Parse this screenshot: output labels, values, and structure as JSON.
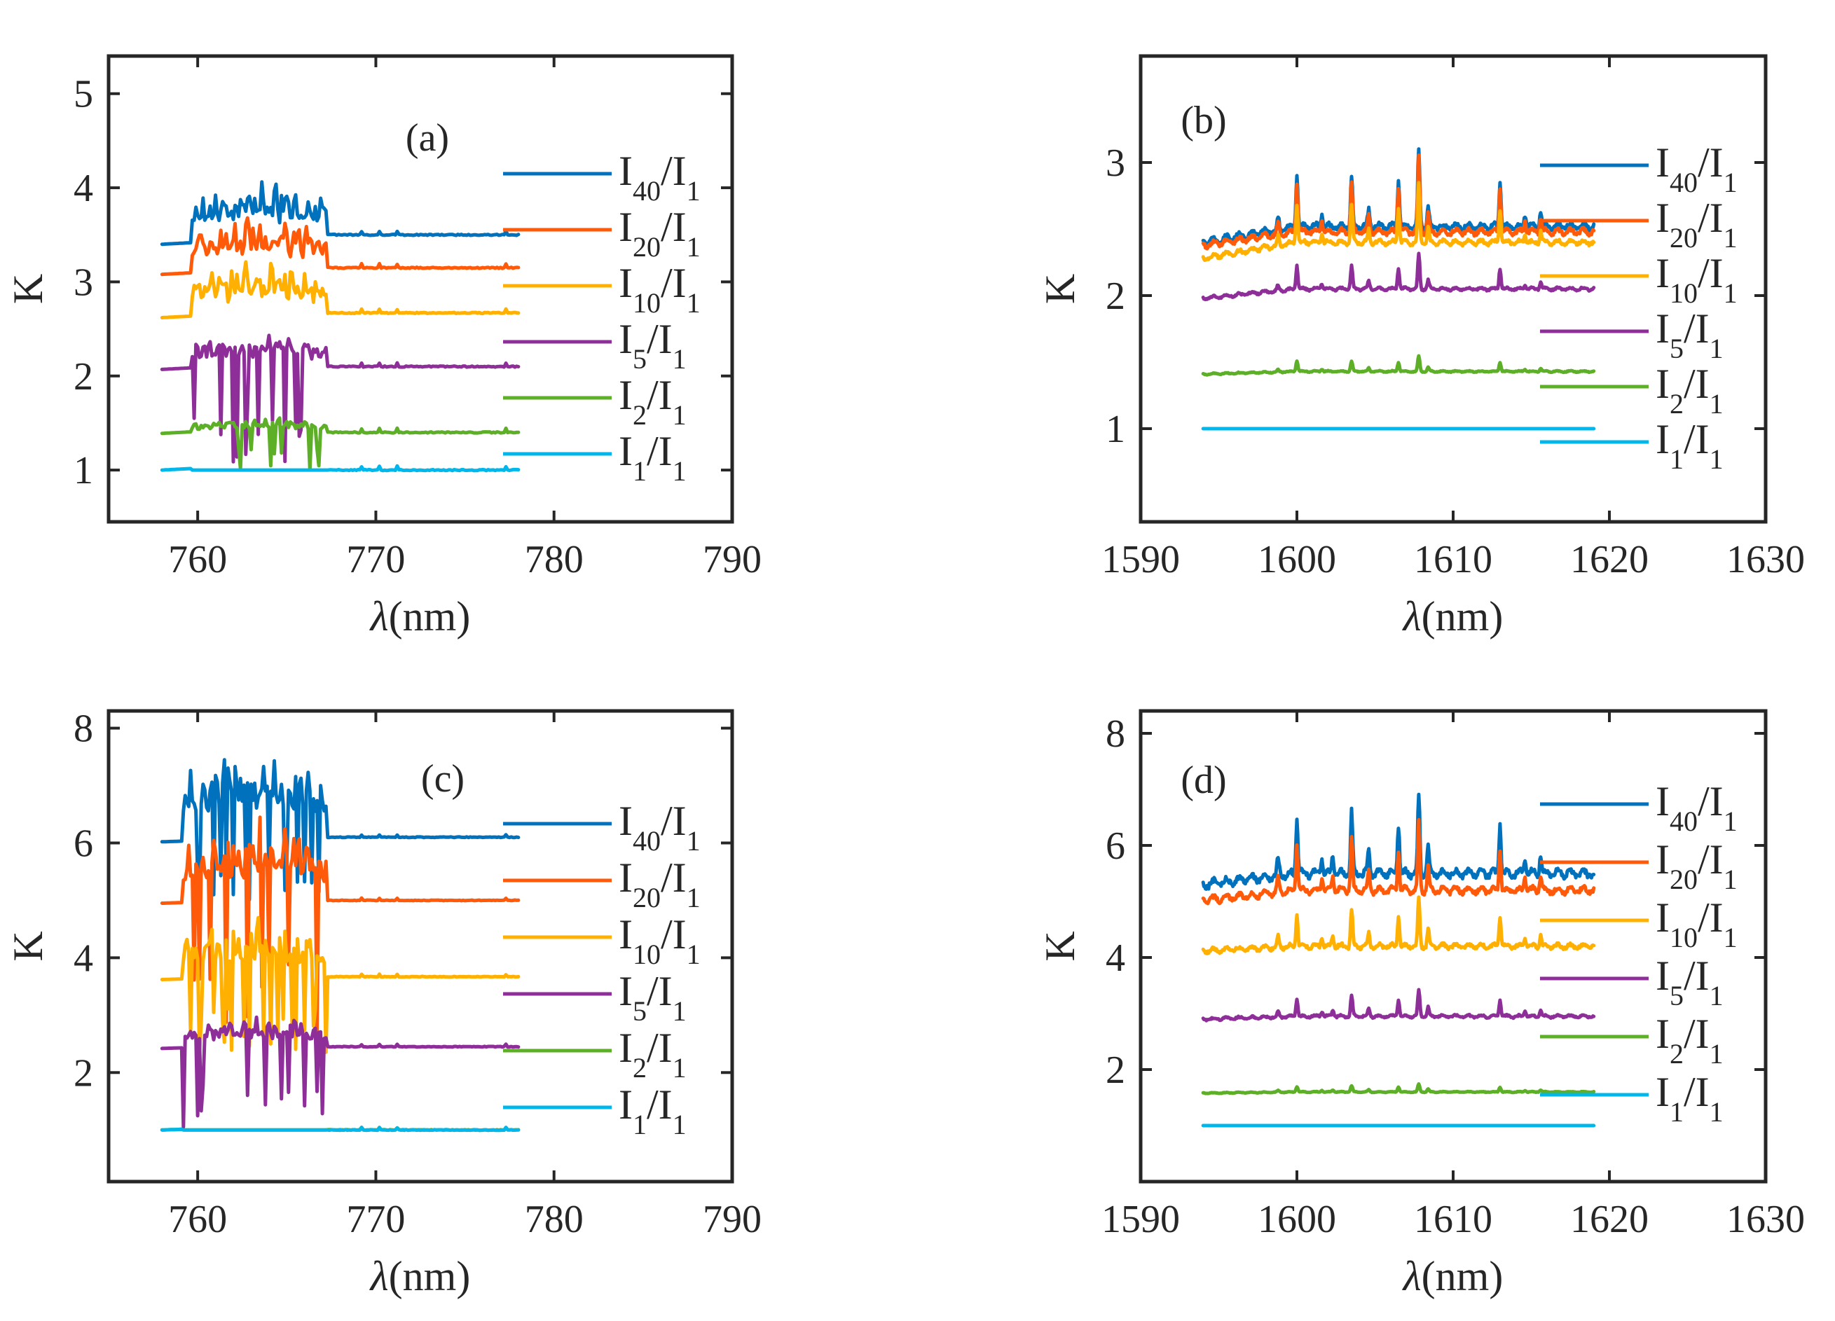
{
  "colors": {
    "I40": "#0072BD",
    "I20": "#FF5A0A",
    "I10": "#FFB000",
    "I5": "#8E2E99",
    "I2": "#5DAF27",
    "I1": "#00B7EB"
  },
  "chart_data": [
    {
      "id": "a",
      "type": "line",
      "panel_label": "(a)",
      "xlabel_symbol": "λ",
      "xlabel_unit": "(nm)",
      "ylabel": "K",
      "xlim": [
        755,
        790
      ],
      "ylim": [
        0.45,
        5.4
      ],
      "xticks": [
        760,
        770,
        780,
        790
      ],
      "yticks": [
        1,
        2,
        3,
        4,
        5
      ],
      "legend_position": "right",
      "x_range": [
        758,
        778
      ],
      "spiky_range": [
        760,
        767.3
      ],
      "series": [
        {
          "name": "I40/I1",
          "base": "I",
          "top": "40",
          "bottom": "1",
          "color_key": "I40",
          "level": 3.5,
          "start_level": 3.4,
          "band_amp": 0.45,
          "dip": 0
        },
        {
          "name": "I20/I1",
          "base": "I",
          "top": "20",
          "bottom": "1",
          "color_key": "I20",
          "level": 3.15,
          "start_level": 3.08,
          "band_amp": 0.45,
          "dip": 0
        },
        {
          "name": "I10/I1",
          "base": "I",
          "top": "10",
          "bottom": "1",
          "color_key": "I10",
          "level": 2.67,
          "start_level": 2.62,
          "band_amp": 0.45,
          "dip": 0
        },
        {
          "name": "I5/I1",
          "base": "I",
          "top": "5",
          "bottom": "1",
          "color_key": "I5",
          "level": 2.1,
          "start_level": 2.07,
          "band_amp": 0.3,
          "dip": 1.05
        },
        {
          "name": "I2/I1",
          "base": "I",
          "top": "2",
          "bottom": "1",
          "color_key": "I2",
          "level": 1.4,
          "start_level": 1.39,
          "band_amp": 0.12,
          "dip": 0.4
        },
        {
          "name": "I1/I1",
          "base": "I",
          "top": "1",
          "bottom": "1",
          "color_key": "I1",
          "level": 1.0,
          "start_level": 1.0,
          "band_amp": 0,
          "dip": 0
        }
      ]
    },
    {
      "id": "b",
      "type": "line",
      "panel_label": "(b)",
      "xlabel_symbol": "λ",
      "xlabel_unit": "(nm)",
      "ylabel": "K",
      "xlim": [
        1590,
        1630
      ],
      "ylim": [
        0.3,
        3.8
      ],
      "xticks": [
        1590,
        1600,
        1610,
        1620,
        1630
      ],
      "yticks": [
        1,
        2,
        3
      ],
      "legend_position": "right",
      "x_range": [
        1594,
        1619
      ],
      "peaks": [
        {
          "x": 1600.0,
          "h": 0.4
        },
        {
          "x": 1603.5,
          "h": 0.38
        },
        {
          "x": 1606.5,
          "h": 0.35
        },
        {
          "x": 1607.8,
          "h": 0.58
        },
        {
          "x": 1613.0,
          "h": 0.35
        },
        {
          "x": 1601.6,
          "h": 0.1
        },
        {
          "x": 1604.6,
          "h": 0.12
        },
        {
          "x": 1608.4,
          "h": 0.14
        },
        {
          "x": 1615.6,
          "h": 0.12
        },
        {
          "x": 1614.6,
          "h": 0.09
        },
        {
          "x": 1598.8,
          "h": 0.08
        }
      ],
      "series": [
        {
          "name": "I40/I1",
          "base": "I",
          "top": "40",
          "bottom": "1",
          "color_key": "I40",
          "level": 2.52,
          "start_level": 2.4,
          "scale": 1.0
        },
        {
          "name": "I20/I1",
          "base": "I",
          "top": "20",
          "bottom": "1",
          "color_key": "I20",
          "level": 2.48,
          "start_level": 2.38,
          "scale": 0.95
        },
        {
          "name": "I10/I1",
          "base": "I",
          "top": "10",
          "bottom": "1",
          "color_key": "I10",
          "level": 2.4,
          "start_level": 2.28,
          "scale": 0.75
        },
        {
          "name": "I5/I1",
          "base": "I",
          "top": "5",
          "bottom": "1",
          "color_key": "I5",
          "level": 2.05,
          "start_level": 1.98,
          "scale": 0.45
        },
        {
          "name": "I2/I1",
          "base": "I",
          "top": "2",
          "bottom": "1",
          "color_key": "I2",
          "level": 1.43,
          "start_level": 1.41,
          "scale": 0.2
        },
        {
          "name": "I1/I1",
          "base": "I",
          "top": "1",
          "bottom": "1",
          "color_key": "I1",
          "level": 1.0,
          "start_level": 1.0,
          "scale": 0
        }
      ]
    },
    {
      "id": "c",
      "type": "line",
      "panel_label": "(c)",
      "xlabel_symbol": "λ",
      "xlabel_unit": "(nm)",
      "ylabel": "K",
      "xlim": [
        755,
        790
      ],
      "ylim": [
        0.1,
        8.3
      ],
      "xticks": [
        760,
        770,
        780,
        790
      ],
      "yticks": [
        2,
        4,
        6,
        8
      ],
      "legend_position": "right",
      "x_range": [
        758,
        778
      ],
      "spiky_range": [
        759.5,
        767.3
      ],
      "series": [
        {
          "name": "I40/I1",
          "base": "I",
          "top": "40",
          "bottom": "1",
          "color_key": "I40",
          "level": 6.1,
          "start_level": 6.02,
          "band_amp": 1.3,
          "dip": 1.2
        },
        {
          "name": "I20/I1",
          "base": "I",
          "top": "20",
          "bottom": "1",
          "color_key": "I20",
          "level": 5.0,
          "start_level": 4.95,
          "band_amp": 1.1,
          "dip": 2.3
        },
        {
          "name": "I10/I1",
          "base": "I",
          "top": "10",
          "bottom": "1",
          "color_key": "I10",
          "level": 3.67,
          "start_level": 3.62,
          "band_amp": 0.8,
          "dip": 1.4
        },
        {
          "name": "I5/I1",
          "base": "I",
          "top": "5",
          "bottom": "1",
          "color_key": "I5",
          "level": 2.45,
          "start_level": 2.42,
          "band_amp": 0.45,
          "dip": 1.4
        },
        {
          "name": "I2/I1",
          "base": "I",
          "top": "2",
          "bottom": "1",
          "color_key": "I2",
          "level": 1.0,
          "start_level": 1.0,
          "band_amp": 0,
          "dip": 0
        },
        {
          "name": "I1/I1",
          "base": "I",
          "top": "1",
          "bottom": "1",
          "color_key": "I1",
          "level": 1.0,
          "start_level": 1.0,
          "band_amp": 0,
          "dip": 0
        }
      ]
    },
    {
      "id": "d",
      "type": "line",
      "panel_label": "(d)",
      "xlabel_symbol": "λ",
      "xlabel_unit": "(nm)",
      "ylabel": "K",
      "xlim": [
        1590,
        1630
      ],
      "ylim": [
        0.0,
        8.4
      ],
      "xticks": [
        1590,
        1600,
        1610,
        1620,
        1630
      ],
      "yticks": [
        2,
        4,
        6,
        8
      ],
      "legend_position": "right",
      "x_range": [
        1594,
        1619
      ],
      "peaks": [
        {
          "x": 1600.0,
          "h": 1.0
        },
        {
          "x": 1603.5,
          "h": 1.1
        },
        {
          "x": 1606.5,
          "h": 0.9
        },
        {
          "x": 1607.8,
          "h": 1.4
        },
        {
          "x": 1613.0,
          "h": 0.9
        },
        {
          "x": 1601.6,
          "h": 0.3
        },
        {
          "x": 1602.3,
          "h": 0.35
        },
        {
          "x": 1604.6,
          "h": 0.4
        },
        {
          "x": 1608.4,
          "h": 0.5
        },
        {
          "x": 1615.6,
          "h": 0.35
        },
        {
          "x": 1614.6,
          "h": 0.3
        },
        {
          "x": 1598.8,
          "h": 0.3
        }
      ],
      "series": [
        {
          "name": "I40/I1",
          "base": "I",
          "top": "40",
          "bottom": "1",
          "color_key": "I40",
          "level": 5.5,
          "start_level": 5.3,
          "scale": 1.0
        },
        {
          "name": "I20/I1",
          "base": "I",
          "top": "20",
          "bottom": "1",
          "color_key": "I20",
          "level": 5.2,
          "start_level": 5.02,
          "scale": 0.85
        },
        {
          "name": "I10/I1",
          "base": "I",
          "top": "10",
          "bottom": "1",
          "color_key": "I10",
          "level": 4.2,
          "start_level": 4.12,
          "scale": 0.6
        },
        {
          "name": "I5/I1",
          "base": "I",
          "top": "5",
          "bottom": "1",
          "color_key": "I5",
          "level": 2.95,
          "start_level": 2.9,
          "scale": 0.33
        },
        {
          "name": "I2/I1",
          "base": "I",
          "top": "2",
          "bottom": "1",
          "color_key": "I2",
          "level": 1.6,
          "start_level": 1.58,
          "scale": 0.1
        },
        {
          "name": "I1/I1",
          "base": "I",
          "top": "1",
          "bottom": "1",
          "color_key": "I1",
          "level": 1.0,
          "start_level": 1.0,
          "scale": 0
        }
      ]
    }
  ]
}
